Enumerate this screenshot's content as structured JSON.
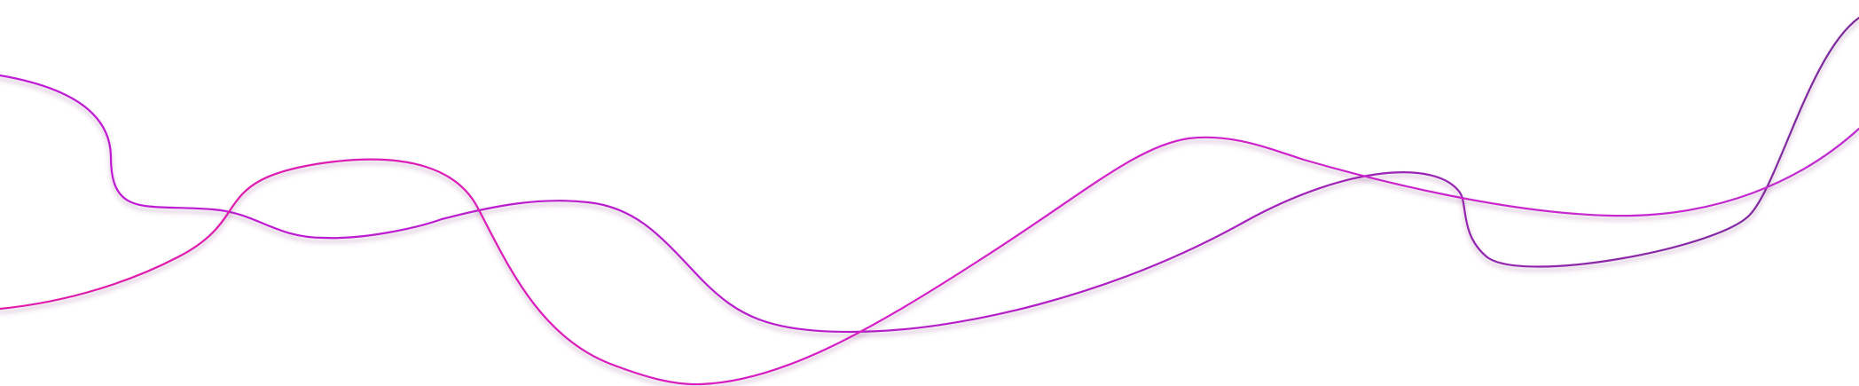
{
  "decoration": {
    "name": "decorative-wavy-lines",
    "line_count": 2,
    "colors": {
      "background": "#ffffff",
      "line_one_start": "#c21ad6",
      "line_one_mid": "#b51fc9",
      "line_one_end": "#7a2a9a",
      "line_two_start": "#e01aa8",
      "line_two_mid": "#d61fc8",
      "line_two_end": "#c02ad0"
    }
  }
}
